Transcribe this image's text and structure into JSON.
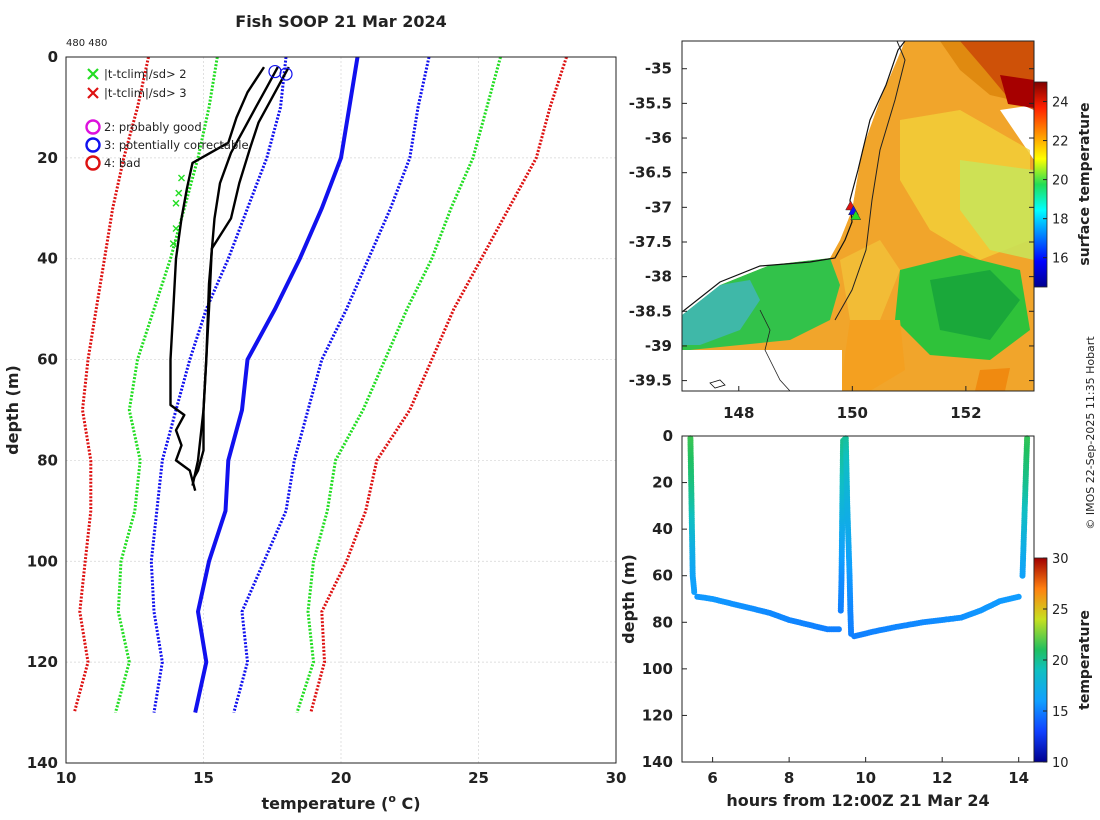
{
  "title": "Fish SOOP 21 Mar 2024",
  "id_label": "480 480",
  "credit": "© IMOS 22-Sep-2025 11:35 Hobart",
  "colors": {
    "green": "#22dd22",
    "red": "#dd1111",
    "blue": "#1111ee",
    "magenta": "#dd11dd",
    "black": "#000000"
  },
  "chart_data": [
    {
      "type": "line",
      "name": "profile",
      "xlabel": "temperature (° C)",
      "xlabel_main": "temperature (",
      "xlabel_sup": "o",
      "xlabel_end": " C)",
      "ylabel": "depth (m)",
      "xlim": [
        10,
        30
      ],
      "ylim": [
        0,
        140
      ],
      "xticks": [
        10,
        15,
        20,
        25,
        30
      ],
      "yticks": [
        0,
        20,
        40,
        60,
        80,
        100,
        120,
        140
      ],
      "grid": true,
      "legend": {
        "crosses": [
          {
            "label": "|t-tclim|/sd> 2",
            "color": "green"
          },
          {
            "label": "|t-tclim|/sd> 3",
            "color": "red"
          }
        ],
        "circles": [
          {
            "label": "2: probably good",
            "color": "magenta"
          },
          {
            "label": "3: potentially correctable",
            "color": "blue"
          },
          {
            "label": "4: bad",
            "color": "red"
          }
        ]
      },
      "climatology_depths": [
        0,
        10,
        20,
        30,
        40,
        50,
        60,
        70,
        80,
        90,
        100,
        110,
        120,
        130
      ],
      "climatology": [
        {
          "name": "mean",
          "color": "blue",
          "dash": false,
          "values": [
            20.6,
            20.3,
            20.0,
            19.3,
            18.5,
            17.6,
            16.6,
            16.4,
            15.9,
            15.8,
            15.2,
            14.8,
            15.1,
            14.7
          ]
        },
        {
          "name": "mean-1sd",
          "color": "blue",
          "dash": true,
          "values": [
            18.0,
            17.8,
            17.3,
            16.6,
            15.9,
            15.1,
            14.5,
            14.0,
            13.5,
            13.3,
            13.1,
            13.2,
            13.5,
            13.2
          ]
        },
        {
          "name": "mean+1sd",
          "color": "blue",
          "dash": true,
          "values": [
            23.2,
            22.8,
            22.5,
            21.8,
            21.0,
            20.2,
            19.3,
            18.8,
            18.3,
            18.0,
            17.2,
            16.4,
            16.6,
            16.1
          ]
        },
        {
          "name": "mean-2sd",
          "color": "green",
          "dash": true,
          "values": [
            15.5,
            15.2,
            14.8,
            14.3,
            13.8,
            13.2,
            12.6,
            12.3,
            12.7,
            12.5,
            12.0,
            11.9,
            12.3,
            11.8
          ]
        },
        {
          "name": "mean+2sd",
          "color": "green",
          "dash": true,
          "values": [
            25.8,
            25.3,
            24.8,
            24.0,
            23.3,
            22.4,
            21.6,
            20.8,
            19.8,
            19.5,
            19.0,
            18.8,
            19.0,
            18.4
          ]
        },
        {
          "name": "mean-3sd",
          "color": "red",
          "dash": true,
          "values": [
            13.0,
            12.6,
            12.1,
            11.7,
            11.4,
            11.1,
            10.8,
            10.6,
            10.9,
            10.9,
            10.7,
            10.5,
            10.8,
            10.3
          ]
        },
        {
          "name": "mean+3sd",
          "color": "red",
          "dash": true,
          "values": [
            28.2,
            27.6,
            27.1,
            26.1,
            25.1,
            24.1,
            23.3,
            22.5,
            21.3,
            20.9,
            20.2,
            19.3,
            19.4,
            18.9
          ]
        }
      ],
      "profiles": [
        {
          "name": "drop 1",
          "points": [
            [
              17.2,
              2
            ],
            [
              16.6,
              7
            ],
            [
              16.2,
              12
            ],
            [
              15.9,
              17
            ],
            [
              14.6,
              21
            ],
            [
              14.4,
              26
            ],
            [
              14.2,
              32
            ],
            [
              14.0,
              40
            ],
            [
              13.9,
              50
            ],
            [
              13.8,
              60
            ],
            [
              13.8,
              69
            ],
            [
              14.3,
              71
            ],
            [
              14.0,
              74
            ],
            [
              14.2,
              77
            ],
            [
              14.0,
              80
            ],
            [
              14.5,
              82
            ],
            [
              14.7,
              86
            ]
          ]
        },
        {
          "name": "drop 2",
          "points": [
            [
              17.7,
              2
            ],
            [
              17.3,
              6
            ],
            [
              16.9,
              10
            ],
            [
              16.5,
              14
            ],
            [
              16.0,
              19
            ],
            [
              15.6,
              25
            ],
            [
              15.4,
              32
            ],
            [
              15.2,
              45
            ],
            [
              15.1,
              60
            ],
            [
              15.0,
              70
            ],
            [
              15.0,
              78
            ],
            [
              14.8,
              82
            ],
            [
              14.6,
              84
            ]
          ]
        },
        {
          "name": "drop 3",
          "points": [
            [
              18.1,
              2
            ],
            [
              17.8,
              5
            ],
            [
              17.4,
              9
            ],
            [
              17.0,
              13
            ],
            [
              16.7,
              18
            ],
            [
              16.3,
              25
            ],
            [
              16.0,
              32
            ],
            [
              15.3,
              38
            ],
            [
              15.2,
              50
            ],
            [
              15.0,
              70
            ],
            [
              14.8,
              80
            ],
            [
              14.6,
              85
            ]
          ]
        }
      ],
      "outlier_points": [
        [
          14.2,
          24
        ],
        [
          14.1,
          27
        ],
        [
          14.0,
          29
        ],
        [
          14.0,
          34
        ],
        [
          13.9,
          37
        ]
      ],
      "flag_circles": [
        {
          "t": 17.6,
          "z": 1.5
        },
        {
          "t": 18.0,
          "z": 2.0
        }
      ]
    },
    {
      "type": "heatmap",
      "name": "map",
      "colorbar_label": "surface temperature",
      "colorbar_ticks": [
        16,
        18,
        20,
        22,
        24
      ],
      "colorbar_range": [
        14.5,
        25
      ],
      "xlim": [
        147.0,
        153.2
      ],
      "ylim": [
        -39.65,
        -34.6
      ],
      "xticks": [
        148,
        150,
        152
      ],
      "yticks": [
        -35,
        -35.5,
        -36,
        -36.5,
        -37,
        -37.5,
        -38,
        -38.5,
        -39,
        -39.5
      ],
      "ytick_labels": [
        "-35",
        "-35.5",
        "-36",
        "-36.5",
        "-37",
        "-37.5",
        "-38",
        "-38.5",
        "-39",
        "-39.5"
      ],
      "markers": [
        {
          "lon": 149.97,
          "lat": -36.98,
          "color": "red"
        },
        {
          "lon": 150.02,
          "lat": -37.05,
          "color": "blue"
        },
        {
          "lon": 150.06,
          "lat": -37.12,
          "color": "green"
        }
      ]
    },
    {
      "type": "scatter",
      "name": "time-depth",
      "xlabel": "hours from 12:00Z 21 Mar 24",
      "ylabel": "depth (m)",
      "colorbar_label": "temperature",
      "xlim": [
        5.2,
        14.4
      ],
      "ylim": [
        0,
        140
      ],
      "xticks": [
        6,
        8,
        10,
        12,
        14
      ],
      "yticks": [
        0,
        20,
        40,
        60,
        80,
        100,
        120,
        140
      ],
      "colorbar_ticks": [
        10,
        15,
        20,
        25,
        30
      ],
      "colorbar_range": [
        10,
        30
      ],
      "series": [
        {
          "name": "descent 1",
          "points": [
            [
              5.42,
              1,
              21.5
            ],
            [
              5.43,
              10,
              21.0
            ],
            [
              5.44,
              20,
              20.4
            ],
            [
              5.45,
              30,
              19.6
            ],
            [
              5.46,
              40,
              18.4
            ],
            [
              5.47,
              50,
              17.2
            ],
            [
              5.48,
              60,
              16.4
            ],
            [
              5.52,
              67,
              16.0
            ]
          ]
        },
        {
          "name": "bottom 1",
          "points": [
            [
              5.6,
              69,
              15.7
            ],
            [
              6.0,
              70,
              15.8
            ],
            [
              6.5,
              72,
              15.6
            ],
            [
              7.0,
              74,
              15.5
            ],
            [
              7.5,
              76,
              15.3
            ],
            [
              8.0,
              79,
              15.2
            ],
            [
              8.5,
              81,
              15.1
            ],
            [
              9.0,
              83,
              15.0
            ],
            [
              9.3,
              83,
              15.0
            ]
          ]
        },
        {
          "name": "ascent 1",
          "points": [
            [
              9.35,
              75,
              15.0
            ],
            [
              9.37,
              60,
              15.4
            ],
            [
              9.38,
              45,
              16.5
            ],
            [
              9.39,
              30,
              17.8
            ],
            [
              9.4,
              15,
              19.2
            ],
            [
              9.41,
              2,
              20.0
            ],
            [
              9.48,
              1,
              19.8
            ],
            [
              9.5,
              15,
              18.5
            ],
            [
              9.52,
              30,
              17.5
            ],
            [
              9.55,
              45,
              16.8
            ],
            [
              9.58,
              60,
              15.8
            ],
            [
              9.6,
              75,
              15.2
            ],
            [
              9.62,
              85,
              15.0
            ]
          ]
        },
        {
          "name": "bottom 2",
          "points": [
            [
              9.7,
              86,
              15.0
            ],
            [
              10.2,
              84,
              15.1
            ],
            [
              10.8,
              82,
              15.2
            ],
            [
              11.5,
              80,
              15.3
            ],
            [
              12.0,
              79,
              15.4
            ],
            [
              12.5,
              78,
              15.5
            ],
            [
              13.0,
              75,
              15.7
            ],
            [
              13.5,
              71,
              15.8
            ],
            [
              14.0,
              69,
              15.9
            ]
          ]
        },
        {
          "name": "ascent 2",
          "points": [
            [
              14.1,
              60,
              16.2
            ],
            [
              14.12,
              50,
              17.0
            ],
            [
              14.14,
              40,
              18.0
            ],
            [
              14.16,
              30,
              19.0
            ],
            [
              14.18,
              20,
              20.0
            ],
            [
              14.2,
              10,
              20.7
            ],
            [
              14.22,
              1,
              21.3
            ]
          ]
        }
      ]
    }
  ]
}
